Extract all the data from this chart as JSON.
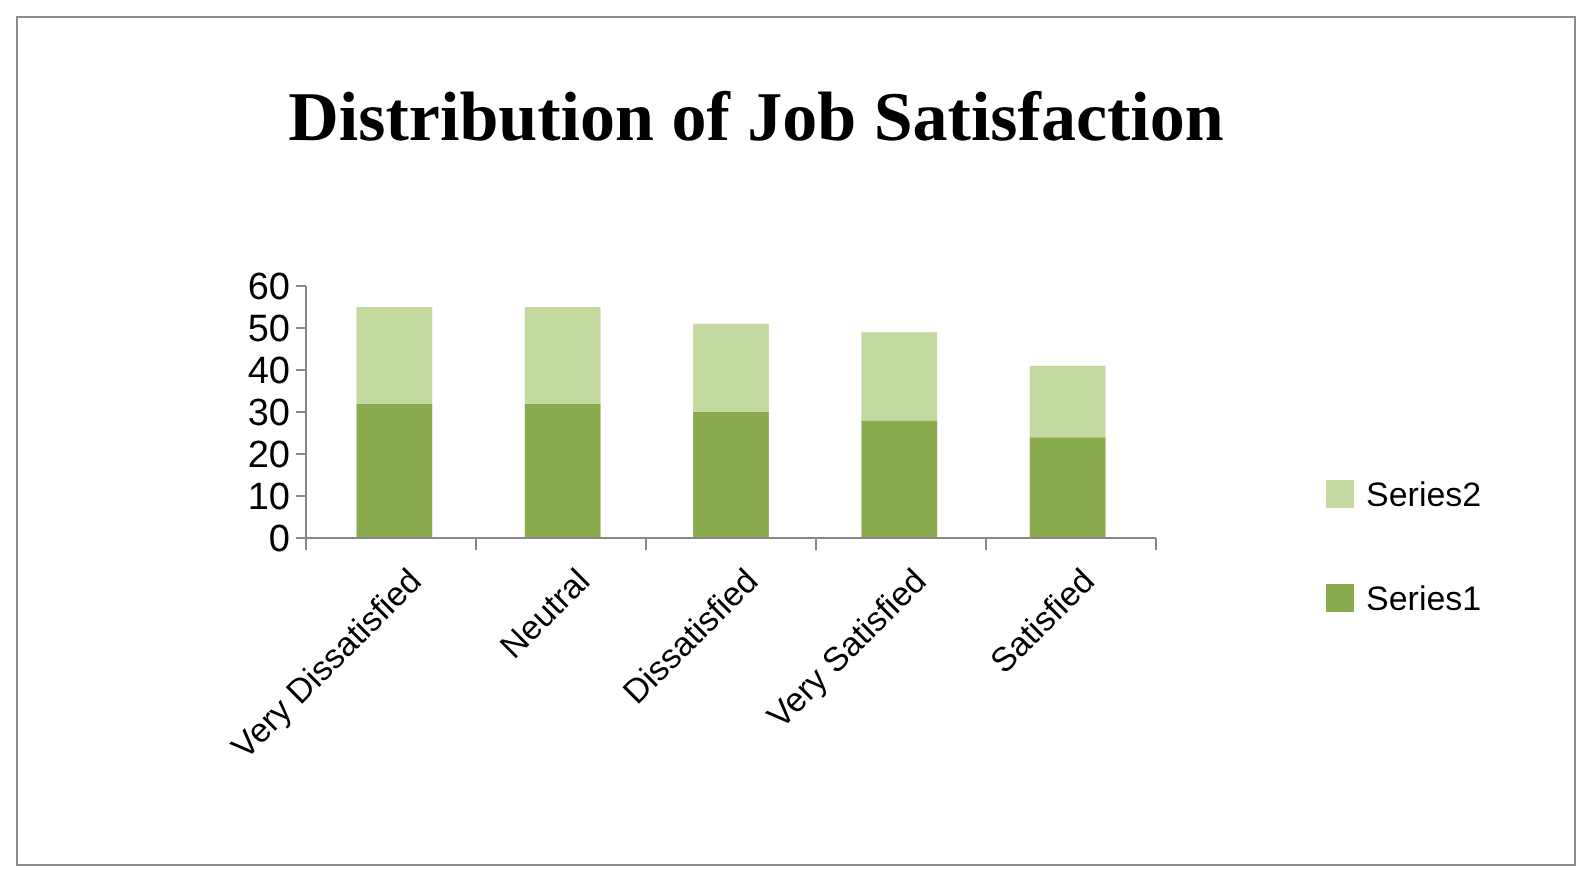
{
  "chart_data": {
    "type": "bar",
    "title": "Distribution of Job Satisfaction",
    "categories": [
      "Very Dissatisfied",
      "Neutral",
      "Dissatisfied",
      "Very Satisfied",
      "Satisfied"
    ],
    "series": [
      {
        "name": "Series1",
        "color": "#8aaa4e",
        "values": [
          32,
          32,
          30,
          28,
          24
        ]
      },
      {
        "name": "Series2",
        "color": "#c3d9a0",
        "values": [
          23,
          23,
          21,
          21,
          17
        ]
      }
    ],
    "stacked": true,
    "ylim": [
      0,
      60
    ],
    "yticks": [
      0,
      10,
      20,
      30,
      40,
      50,
      60
    ],
    "grid": false,
    "legend": "right"
  }
}
